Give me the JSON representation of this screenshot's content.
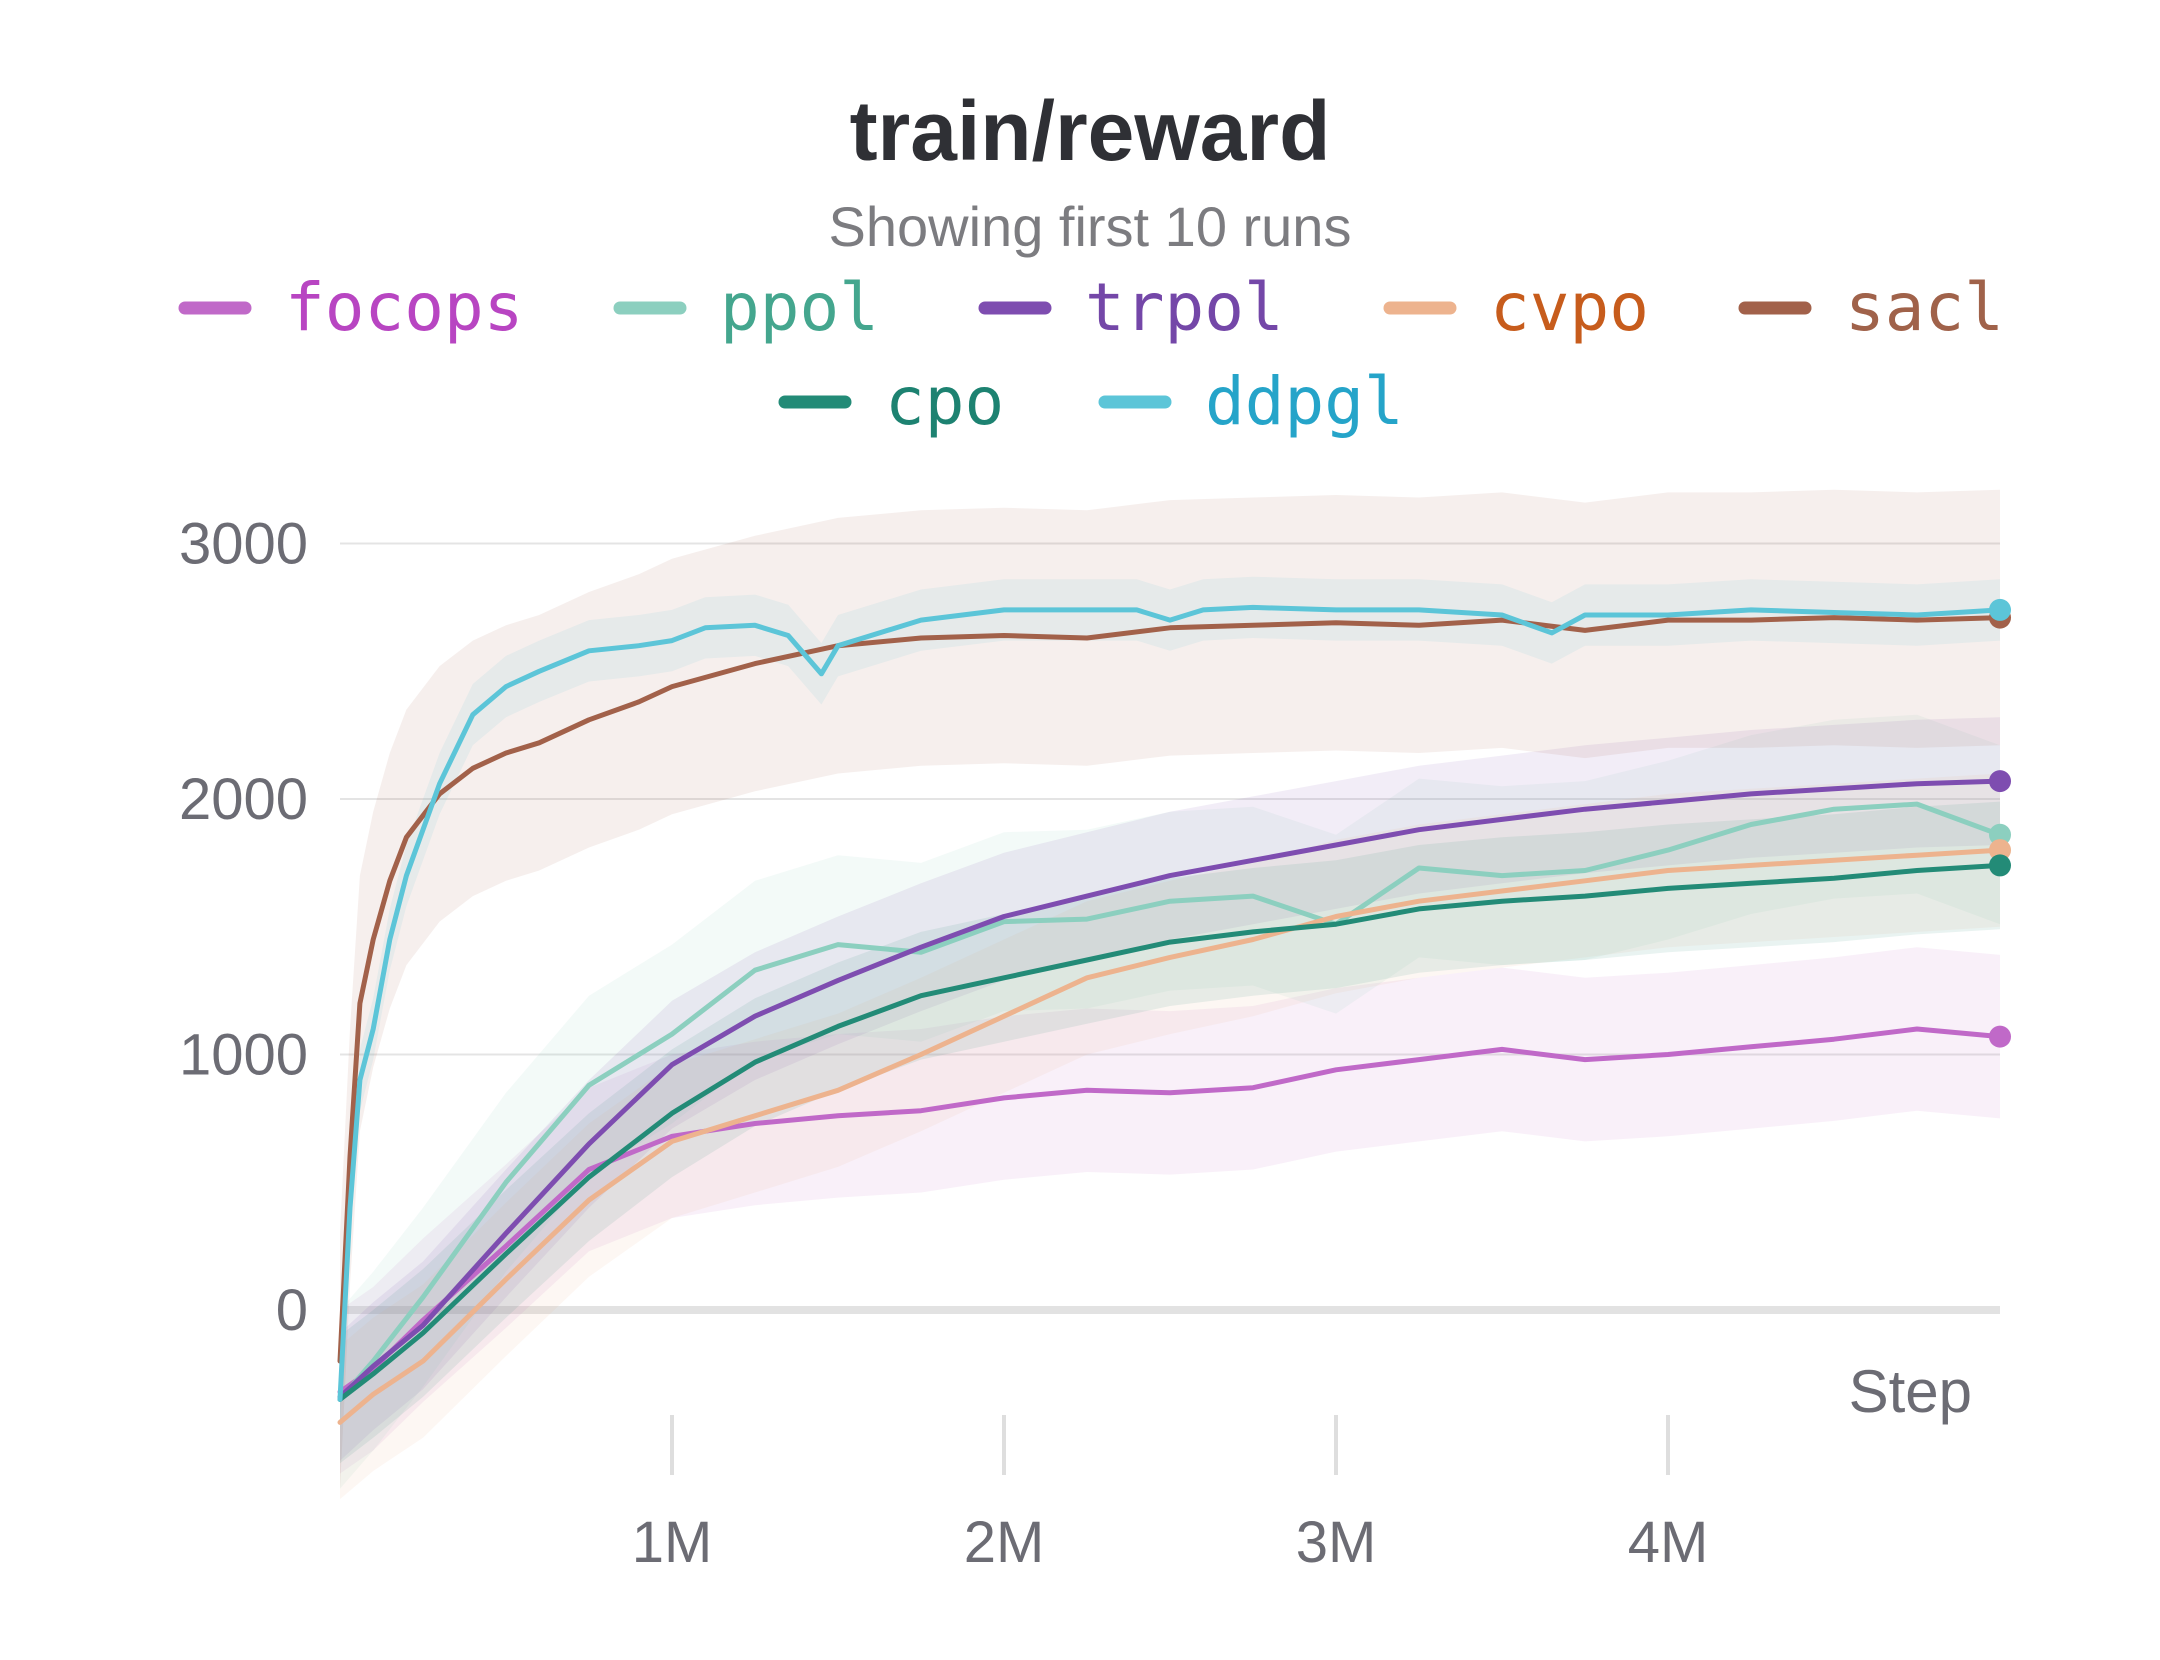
{
  "chart_data": {
    "type": "line",
    "title": "train/reward",
    "subtitle": "Showing first 10 runs",
    "xlabel": "Step",
    "ylabel": "",
    "xlim": [
      0,
      5000000
    ],
    "ylim": [
      -500,
      3200
    ],
    "x_ticks": [
      1000000,
      2000000,
      3000000,
      4000000
    ],
    "x_tick_labels": [
      "1M",
      "2M",
      "3M",
      "4M"
    ],
    "y_ticks": [
      0,
      1000,
      2000,
      3000
    ],
    "y_tick_labels": [
      "0",
      "1000",
      "2000",
      "3000"
    ],
    "grid": true,
    "legend_position": "top",
    "series": [
      {
        "name": "focops",
        "color": "#c069c8",
        "label_color": "#b845c2",
        "band": 320,
        "x": [
          0,
          100000,
          250000,
          500000,
          750000,
          1000000,
          1250000,
          1500000,
          1750000,
          2000000,
          2250000,
          2500000,
          2750000,
          3000000,
          3250000,
          3500000,
          3750000,
          4000000,
          4250000,
          4500000,
          4750000,
          5000000
        ],
        "y": [
          -320,
          -230,
          -40,
          250,
          550,
          680,
          730,
          760,
          780,
          830,
          860,
          850,
          870,
          940,
          980,
          1020,
          980,
          1000,
          1030,
          1060,
          1100,
          1070
        ]
      },
      {
        "name": "ppol",
        "color": "#8ccfbf",
        "label_color": "#44a68e",
        "band": 350,
        "x": [
          0,
          100000,
          250000,
          500000,
          750000,
          1000000,
          1250000,
          1500000,
          1750000,
          2000000,
          2250000,
          2500000,
          2750000,
          3000000,
          3250000,
          3500000,
          3750000,
          4000000,
          4250000,
          4500000,
          4750000,
          5000000
        ],
        "y": [
          -350,
          -200,
          50,
          500,
          880,
          1080,
          1330,
          1430,
          1400,
          1520,
          1530,
          1600,
          1620,
          1510,
          1730,
          1700,
          1720,
          1800,
          1900,
          1960,
          1980,
          1860
        ]
      },
      {
        "name": "trpol",
        "color": "#7e4db0",
        "label_color": "#7447a8",
        "band": 250,
        "x": [
          0,
          100000,
          250000,
          500000,
          750000,
          1000000,
          1250000,
          1500000,
          1750000,
          2000000,
          2250000,
          2500000,
          2750000,
          3000000,
          3250000,
          3500000,
          3750000,
          4000000,
          4250000,
          4500000,
          4750000,
          5000000
        ],
        "y": [
          -340,
          -220,
          -60,
          300,
          650,
          960,
          1150,
          1290,
          1420,
          1540,
          1620,
          1700,
          1760,
          1820,
          1880,
          1920,
          1960,
          1990,
          2020,
          2040,
          2060,
          2070
        ]
      },
      {
        "name": "cvpo",
        "color": "#edb38e",
        "label_color": "#c75c1c",
        "band": 300,
        "x": [
          0,
          100000,
          250000,
          500000,
          750000,
          1000000,
          1250000,
          1500000,
          1750000,
          2000000,
          2250000,
          2500000,
          2750000,
          3000000,
          3250000,
          3500000,
          3750000,
          4000000,
          4250000,
          4500000,
          4750000,
          5000000
        ],
        "y": [
          -440,
          -330,
          -200,
          120,
          430,
          660,
          760,
          860,
          1000,
          1150,
          1300,
          1380,
          1450,
          1540,
          1600,
          1640,
          1680,
          1720,
          1740,
          1760,
          1780,
          1800
        ]
      },
      {
        "name": "sacl",
        "color": "#a2614a",
        "label_color": "#a0624a",
        "band": 500,
        "x": [
          0,
          30000,
          60000,
          100000,
          150000,
          200000,
          300000,
          400000,
          500000,
          600000,
          750000,
          900000,
          1000000,
          1250000,
          1500000,
          1750000,
          2000000,
          2250000,
          2500000,
          2750000,
          3000000,
          3250000,
          3500000,
          3750000,
          4000000,
          4250000,
          4500000,
          4750000,
          5000000
        ],
        "y": [
          -200,
          600,
          1200,
          1450,
          1680,
          1850,
          2020,
          2120,
          2180,
          2220,
          2310,
          2380,
          2440,
          2530,
          2600,
          2630,
          2640,
          2630,
          2670,
          2680,
          2690,
          2680,
          2700,
          2660,
          2700,
          2700,
          2710,
          2700,
          2710
        ]
      },
      {
        "name": "cpo",
        "color": "#238b77",
        "label_color": "#1d8271",
        "band": 250,
        "x": [
          0,
          100000,
          250000,
          500000,
          750000,
          1000000,
          1250000,
          1500000,
          1750000,
          2000000,
          2250000,
          2500000,
          2750000,
          3000000,
          3250000,
          3500000,
          3750000,
          4000000,
          4250000,
          4500000,
          4750000,
          5000000
        ],
        "y": [
          -350,
          -250,
          -90,
          220,
          520,
          770,
          970,
          1110,
          1230,
          1300,
          1370,
          1440,
          1480,
          1510,
          1570,
          1600,
          1620,
          1650,
          1670,
          1690,
          1720,
          1740
        ]
      },
      {
        "name": "ddpgl",
        "color": "#5cc5d8",
        "label_color": "#25a4c9",
        "band": 120,
        "x": [
          0,
          30000,
          60000,
          100000,
          150000,
          200000,
          300000,
          400000,
          500000,
          600000,
          750000,
          900000,
          1000000,
          1100000,
          1250000,
          1350000,
          1450000,
          1500000,
          1750000,
          2000000,
          2250000,
          2400000,
          2500000,
          2600000,
          2750000,
          3000000,
          3250000,
          3500000,
          3650000,
          3750000,
          4000000,
          4250000,
          4500000,
          4750000,
          5000000
        ],
        "y": [
          -350,
          400,
          900,
          1100,
          1450,
          1700,
          2060,
          2330,
          2440,
          2500,
          2580,
          2600,
          2620,
          2670,
          2680,
          2640,
          2490,
          2600,
          2700,
          2740,
          2740,
          2740,
          2700,
          2740,
          2750,
          2740,
          2740,
          2720,
          2650,
          2720,
          2720,
          2740,
          2730,
          2720,
          2740
        ]
      }
    ]
  }
}
